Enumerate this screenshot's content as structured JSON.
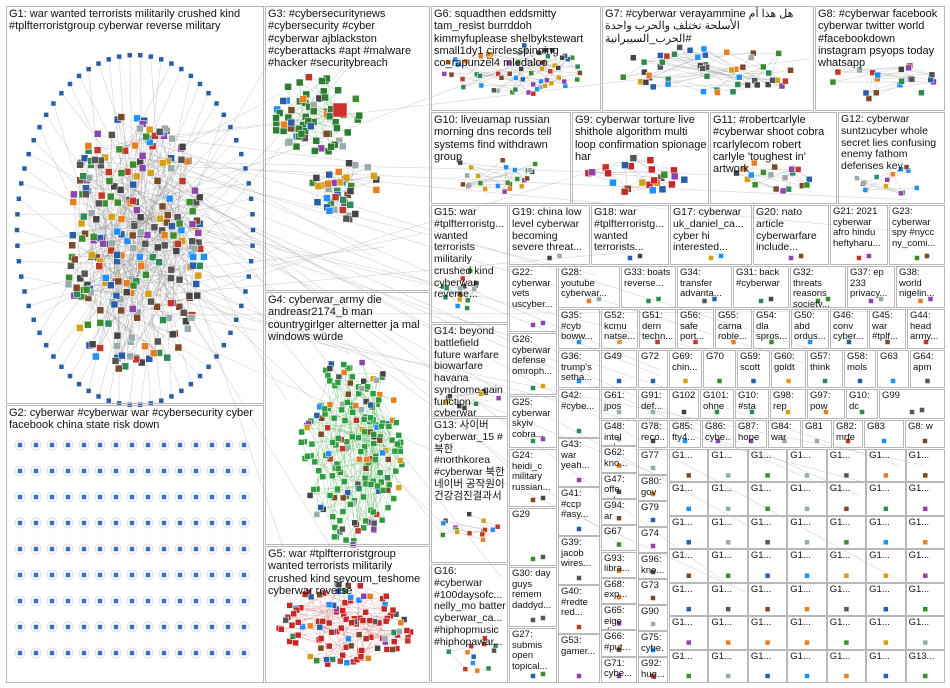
{
  "groups": [
    "G1: war wanted terrorists militarily crushed kind #tplfterroristgroup cyberwar reverse military",
    "G2: cyberwar #cyberwar war #cybersecurity cyber facebook china state risk down",
    "G3: #cybersecuritynews #cybersecurity #cyber #cyberwar ajblackston #cyberattacks #apt #malware #hacker #securitybreach",
    "G4: cyberwar_army die andreasr2174_b man countrygirlger alternetter ja mal windows würde",
    "G5: war #tplfterroristgroup wanted terrorists militarily crushed kind seyoum_teshome cyberwar reverse",
    "G6: squadthen eddsmitty tam_resist burrddoh kimmyfuplease shelbykstewart small1dy1 circlesspinning co_rapunzel4 mledaloo",
    "G7: #cyberwar verayammine هل هذا أم الأسلحة تختلف والحرب واحدة #الحرب_السيبرانية",
    "G8: #cyberwar facebook cyberwar twitter world #facebookdown instagram psyops today whatsapp",
    "G10: liveuamap russian morning dns records tell systems find withdrawn group",
    "G9: cyberwar torture live shithole algorithm multi loop confirmation spionage har",
    "G11: #robertcarlyle #cyberwar shoot cobra rcarlylecom robert carlyle 'toughest in' artwork",
    "G12: cyberwar suntzucyber whole secret lies confusing enemy fathom defenses key",
    "G15: war #tplfterroristg... wanted terrorists militarily crushed kind cyberwar reverse...",
    "G14: beyond battlefield future warfare biowarfare havana syndrome gain function cyberwar",
    "G13: 사이버 cyberwar_15 #북한 #northkorea #cyberwar 북한 네이버 공작원이 건강검진결과서",
    "G16: #cyberwar #100daysofc... nelly_mo batter cyberwar_ca... #hiphopmusic #hiphopawar...",
    "G19: china low level cyberwar becoming severe threat...",
    "G18: war #tplfterroristg... wanted terrorists...",
    "G17: cyberwar uk_daniel_ca... cyber hi interested...",
    "G20: nato article cyberwarfare include...",
    "G21: 2021 cyberwar afro hindu heftyharu...",
    "G23: cyberwar spy #nycc ny_comi...",
    "G22: cyberwar vets uscyber...",
    "G28: youtube cyberwar...",
    "G33: boats reverse...",
    "G34: transfer advanta...",
    "G31: back #cyberwar",
    "G32: threats reasons society...",
    "G37: ep 233 privacy...",
    "G38: world nigelin...",
    "G26: cyberwar defense omroph...",
    "G25: cyberwar skyiv cobra...",
    "G24: heidi_c military russian...",
    "G29",
    "G30: day guys remem daddyd...",
    "G27: submis open topical...",
    "G35: #cyb boww...",
    "G52: kcmu natse...",
    "G51: dern techn...",
    "G56: safe port...",
    "G55: carna roble...",
    "G54: dla spros...",
    "G50: abd ordus...",
    "G46: conv cyber...",
    "G45: war #tplf...",
    "G44: head army...",
    "G36: trump's setha...",
    "G49",
    "G72",
    "G69: chin...",
    "G70",
    "G59: scott",
    "G60: goldt",
    "G57: think",
    "G58: mols",
    "G63",
    "G64: apm",
    "G61: jpos",
    "G91: def...",
    "G102",
    "G101: ohne",
    "G10: #sta",
    "G98: rep",
    "G97: pow",
    "G10: dc",
    "G99",
    "G78: reco...",
    "G85: fty4...",
    "G86: cybe...",
    "G87: hope",
    "G84: war",
    "G81",
    "G82: mrfe",
    "G83",
    "G8: w",
    "G42: #cybe...",
    "G43: war yeah...",
    "G41: #ccp #asy...",
    "G39: jacob wires...",
    "G40: #redte red...",
    "G53: gamer...",
    "G48: intel cybe...",
    "G62: kno...",
    "G47: offe cybe...",
    "G94: ar",
    "G67",
    "G93: libra...",
    "G68: exp...",
    "G65: eige die...",
    "G66: #put...",
    "G71: cybe...",
    "G77",
    "G80: gov",
    "G79",
    "G74",
    "G96: kno...",
    "G73",
    "G90",
    "G75: cybe...",
    "G92: hug...",
    "G1...",
    "G1...",
    "G1...",
    "G1...",
    "G1...",
    "G1...",
    "G1...",
    "G1...",
    "G1...",
    "G1...",
    "G1...",
    "G1...",
    "G1...",
    "G1...",
    "G1...",
    "G1...",
    "G1...",
    "G1...",
    "G1...",
    "G1...",
    "G1...",
    "G1...",
    "G1...",
    "G1...",
    "G1...",
    "G1...",
    "G1...",
    "G1...",
    "G1...",
    "G1...",
    "G1...",
    "G1...",
    "G1...",
    "G1...",
    "G1...",
    "G1...",
    "G1...",
    "G1...",
    "G1...",
    "G1...",
    "G1...",
    "G1...",
    "G1...",
    "G1...",
    "G1...",
    "G1...",
    "G1...",
    "G1...",
    "G13..."
  ]
}
